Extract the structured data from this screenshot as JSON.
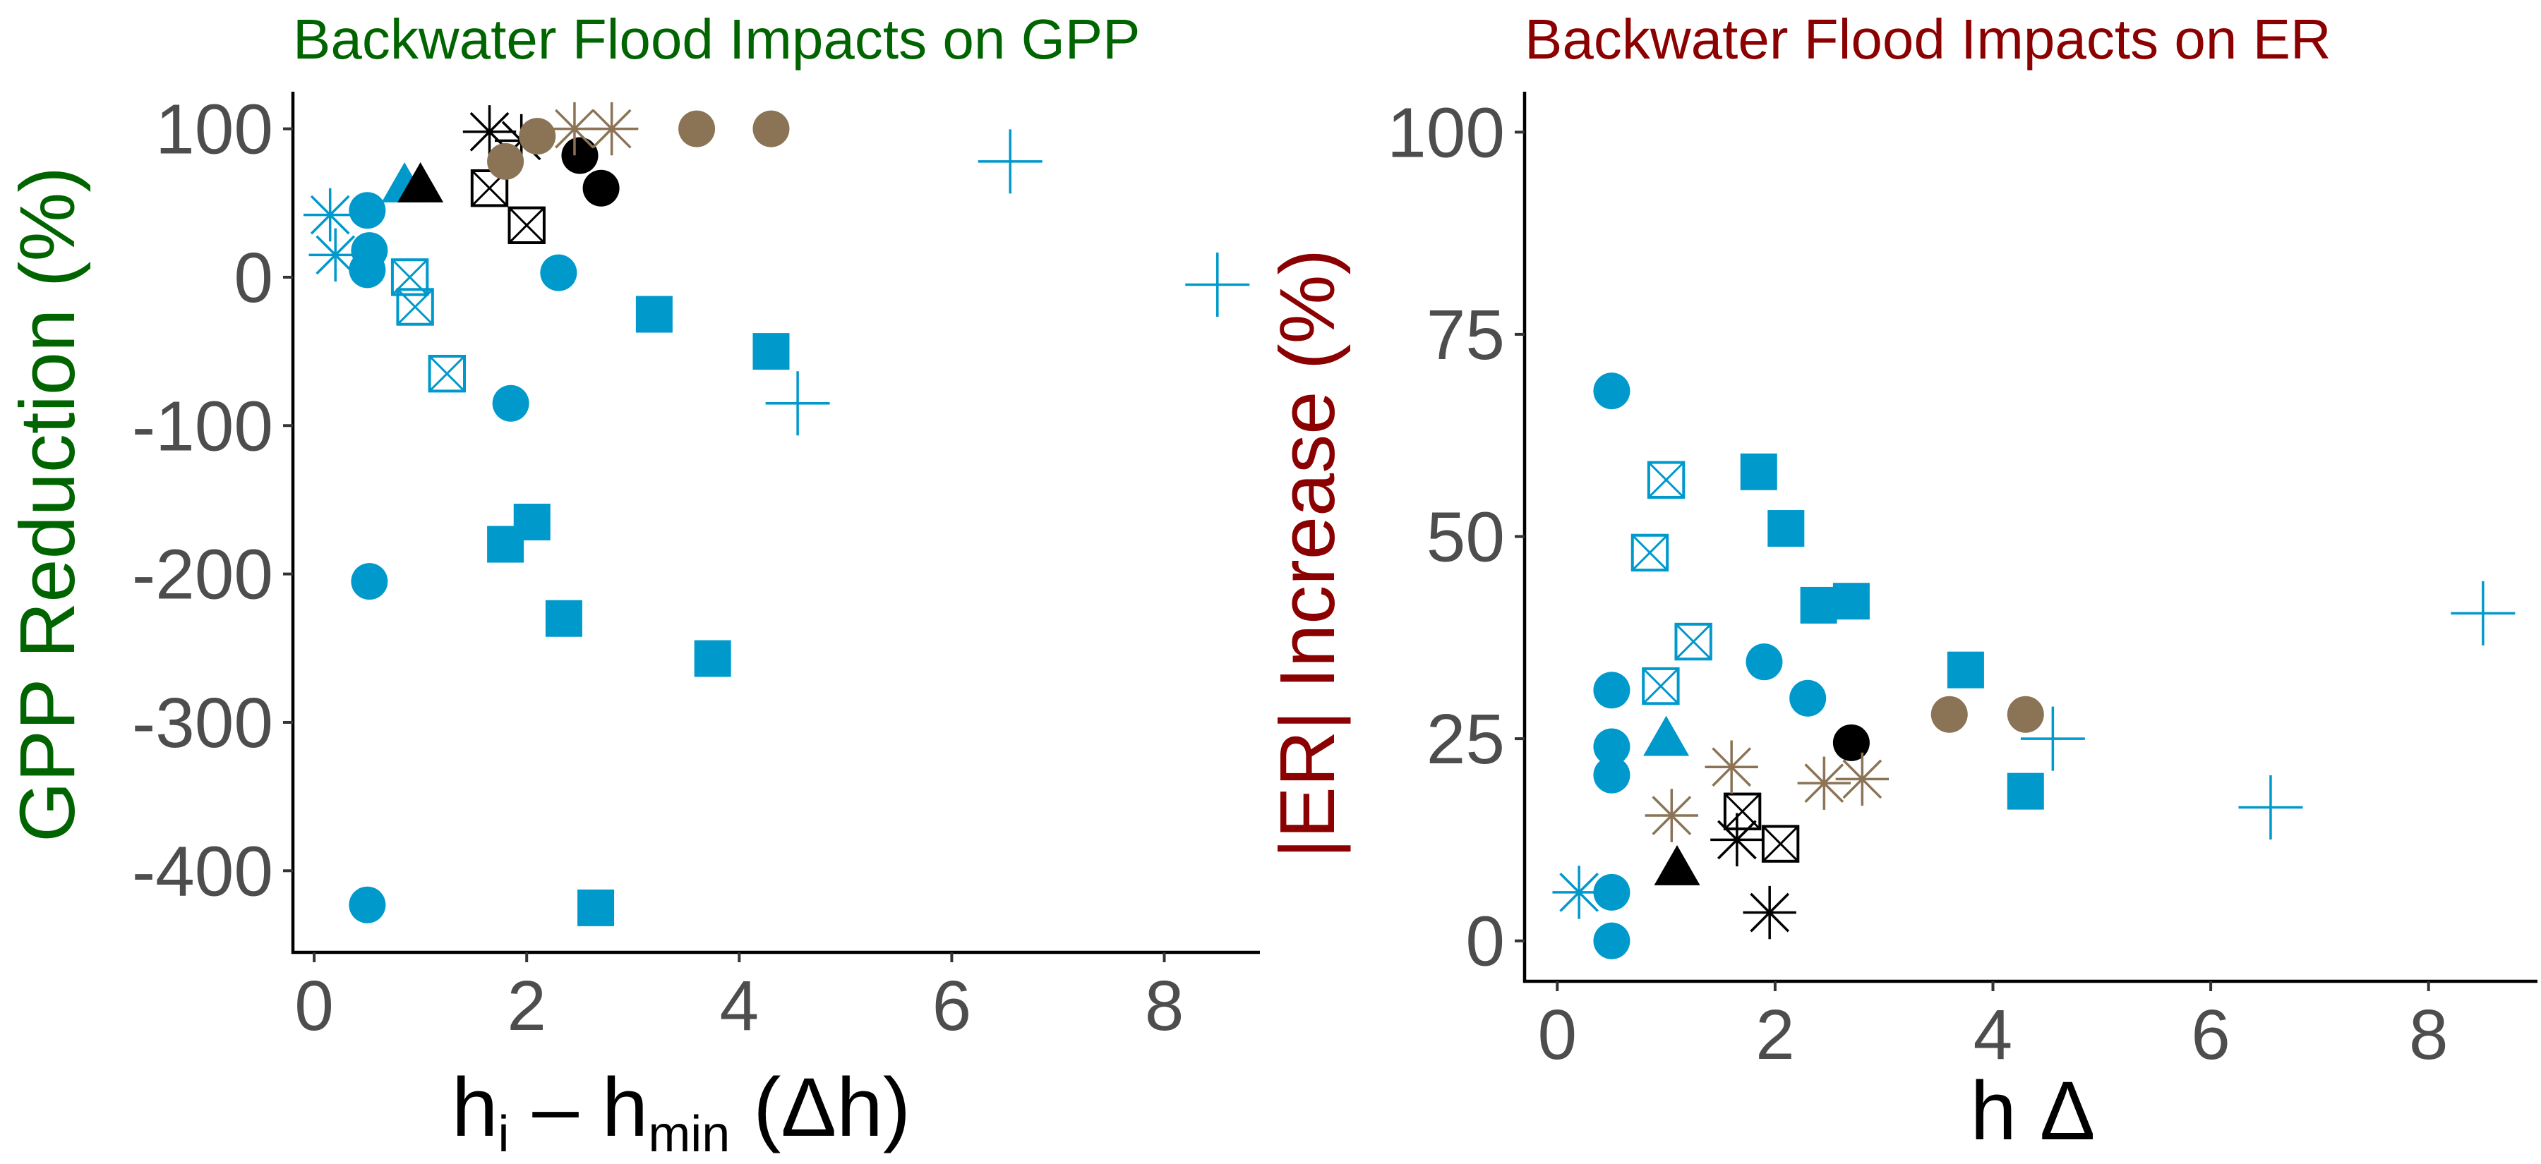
{
  "colors": {
    "blue": "#0099cc",
    "brown": "#8b7355",
    "black": "#000000",
    "green_title": "#006400",
    "red_title": "#8b0000"
  },
  "chart_data": [
    {
      "type": "scatter",
      "title": "Backwater Flood Impacts on GPP",
      "xlabel_main": "h",
      "xlabel_sub1": "i",
      "xlabel_mid": " – h",
      "xlabel_sub2": "min",
      "xlabel_tail": " (Δh)",
      "ylabel": "GPP Reduction (%)",
      "xlim": [
        -0.2,
        8.9
      ],
      "ylim": [
        -455,
        125
      ],
      "xticks": [
        0,
        2,
        4,
        6,
        8
      ],
      "yticks": [
        100,
        0,
        -100,
        -200,
        -300,
        -400
      ],
      "grid": false,
      "points": [
        {
          "x": 0.5,
          "y": 45,
          "shape": "circle",
          "color": "blue"
        },
        {
          "x": 0.52,
          "y": 18,
          "shape": "circle",
          "color": "blue"
        },
        {
          "x": 0.5,
          "y": 5,
          "shape": "circle",
          "color": "blue"
        },
        {
          "x": 0.52,
          "y": -205,
          "shape": "circle",
          "color": "blue"
        },
        {
          "x": 0.5,
          "y": -423,
          "shape": "circle",
          "color": "blue"
        },
        {
          "x": 1.85,
          "y": -85,
          "shape": "circle",
          "color": "blue"
        },
        {
          "x": 2.3,
          "y": 3,
          "shape": "circle",
          "color": "blue"
        },
        {
          "x": 1.8,
          "y": -180,
          "shape": "square",
          "color": "blue"
        },
        {
          "x": 2.05,
          "y": -165,
          "shape": "square",
          "color": "blue"
        },
        {
          "x": 2.35,
          "y": -230,
          "shape": "square",
          "color": "blue"
        },
        {
          "x": 3.2,
          "y": -25,
          "shape": "square",
          "color": "blue"
        },
        {
          "x": 3.75,
          "y": -257,
          "shape": "square",
          "color": "blue"
        },
        {
          "x": 4.3,
          "y": -50,
          "shape": "square",
          "color": "blue"
        },
        {
          "x": 2.65,
          "y": -425,
          "shape": "square",
          "color": "blue"
        },
        {
          "x": 0.9,
          "y": 0,
          "shape": "boxx",
          "color": "blue"
        },
        {
          "x": 0.95,
          "y": -20,
          "shape": "boxx",
          "color": "blue"
        },
        {
          "x": 1.25,
          "y": -65,
          "shape": "boxx",
          "color": "blue"
        },
        {
          "x": 0.85,
          "y": 62,
          "shape": "triangle",
          "color": "blue"
        },
        {
          "x": 0.15,
          "y": 42,
          "shape": "asterisk",
          "color": "blue"
        },
        {
          "x": 0.2,
          "y": 15,
          "shape": "asterisk",
          "color": "blue"
        },
        {
          "x": 6.55,
          "y": 78,
          "shape": "plus",
          "color": "blue"
        },
        {
          "x": 8.5,
          "y": -5,
          "shape": "plus",
          "color": "blue"
        },
        {
          "x": 4.55,
          "y": -85,
          "shape": "plus",
          "color": "blue"
        },
        {
          "x": 2.5,
          "y": 82,
          "shape": "circle",
          "color": "black"
        },
        {
          "x": 2.7,
          "y": 60,
          "shape": "circle",
          "color": "black"
        },
        {
          "x": 1.0,
          "y": 62,
          "shape": "triangle",
          "color": "black"
        },
        {
          "x": 1.65,
          "y": 60,
          "shape": "boxx",
          "color": "black"
        },
        {
          "x": 2.0,
          "y": 35,
          "shape": "boxx",
          "color": "black"
        },
        {
          "x": 1.65,
          "y": 98,
          "shape": "asterisk",
          "color": "black"
        },
        {
          "x": 1.95,
          "y": 92,
          "shape": "asterisk",
          "color": "black"
        },
        {
          "x": 1.8,
          "y": 78,
          "shape": "circle",
          "color": "brown"
        },
        {
          "x": 2.1,
          "y": 95,
          "shape": "circle",
          "color": "brown"
        },
        {
          "x": 3.6,
          "y": 100,
          "shape": "circle",
          "color": "brown"
        },
        {
          "x": 4.3,
          "y": 100,
          "shape": "circle",
          "color": "brown"
        },
        {
          "x": 2.45,
          "y": 100,
          "shape": "asterisk",
          "color": "brown"
        },
        {
          "x": 2.8,
          "y": 100,
          "shape": "asterisk",
          "color": "brown"
        }
      ]
    },
    {
      "type": "scatter",
      "title": "Backwater Flood Impacts on ER",
      "xlabel": "h Δ",
      "ylabel": "|ER| Increase (%)",
      "xlim": [
        -0.3,
        9.0
      ],
      "ylim": [
        -5,
        105
      ],
      "xticks": [
        0,
        2,
        4,
        6,
        8
      ],
      "yticks": [
        0,
        25,
        50,
        75,
        100
      ],
      "grid": false,
      "points": [
        {
          "x": 0.5,
          "y": 68,
          "shape": "circle",
          "color": "blue"
        },
        {
          "x": 0.5,
          "y": 31,
          "shape": "circle",
          "color": "blue"
        },
        {
          "x": 0.5,
          "y": 24,
          "shape": "circle",
          "color": "blue"
        },
        {
          "x": 0.5,
          "y": 20.5,
          "shape": "circle",
          "color": "blue"
        },
        {
          "x": 0.5,
          "y": 6,
          "shape": "circle",
          "color": "blue"
        },
        {
          "x": 0.5,
          "y": 0,
          "shape": "circle",
          "color": "blue"
        },
        {
          "x": 1.9,
          "y": 34.5,
          "shape": "circle",
          "color": "blue"
        },
        {
          "x": 2.3,
          "y": 30,
          "shape": "circle",
          "color": "blue"
        },
        {
          "x": 1.85,
          "y": 58,
          "shape": "square",
          "color": "blue"
        },
        {
          "x": 2.1,
          "y": 51,
          "shape": "square",
          "color": "blue"
        },
        {
          "x": 2.4,
          "y": 41.5,
          "shape": "square",
          "color": "blue"
        },
        {
          "x": 2.7,
          "y": 42,
          "shape": "square",
          "color": "blue"
        },
        {
          "x": 3.75,
          "y": 33.5,
          "shape": "square",
          "color": "blue"
        },
        {
          "x": 4.3,
          "y": 18.5,
          "shape": "square",
          "color": "blue"
        },
        {
          "x": 1.0,
          "y": 57,
          "shape": "boxx",
          "color": "blue"
        },
        {
          "x": 0.85,
          "y": 48,
          "shape": "boxx",
          "color": "blue"
        },
        {
          "x": 1.25,
          "y": 37,
          "shape": "boxx",
          "color": "blue"
        },
        {
          "x": 0.95,
          "y": 31.5,
          "shape": "boxx",
          "color": "blue"
        },
        {
          "x": 1.0,
          "y": 25,
          "shape": "triangle",
          "color": "blue"
        },
        {
          "x": 0.2,
          "y": 6,
          "shape": "asterisk",
          "color": "blue"
        },
        {
          "x": 8.5,
          "y": 40.5,
          "shape": "plus",
          "color": "blue"
        },
        {
          "x": 4.55,
          "y": 25,
          "shape": "plus",
          "color": "blue"
        },
        {
          "x": 6.55,
          "y": 16.5,
          "shape": "plus",
          "color": "blue"
        },
        {
          "x": 2.7,
          "y": 24.5,
          "shape": "circle",
          "color": "black"
        },
        {
          "x": 1.1,
          "y": 9,
          "shape": "triangle",
          "color": "black"
        },
        {
          "x": 1.7,
          "y": 16,
          "shape": "boxx",
          "color": "black"
        },
        {
          "x": 2.05,
          "y": 12,
          "shape": "boxx",
          "color": "black"
        },
        {
          "x": 1.65,
          "y": 12.5,
          "shape": "asterisk",
          "color": "black"
        },
        {
          "x": 1.95,
          "y": 3.5,
          "shape": "asterisk",
          "color": "black"
        },
        {
          "x": 3.6,
          "y": 28,
          "shape": "circle",
          "color": "brown"
        },
        {
          "x": 4.3,
          "y": 28,
          "shape": "circle",
          "color": "brown"
        },
        {
          "x": 1.6,
          "y": 21.5,
          "shape": "asterisk",
          "color": "brown"
        },
        {
          "x": 1.05,
          "y": 15.5,
          "shape": "asterisk",
          "color": "brown"
        },
        {
          "x": 2.45,
          "y": 19.5,
          "shape": "asterisk",
          "color": "brown"
        },
        {
          "x": 2.8,
          "y": 20,
          "shape": "asterisk",
          "color": "brown"
        }
      ]
    }
  ]
}
